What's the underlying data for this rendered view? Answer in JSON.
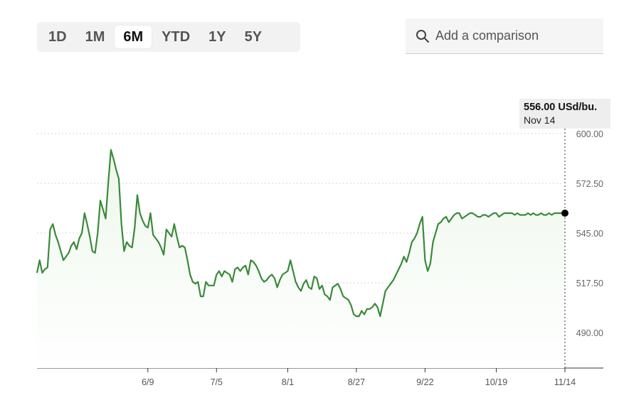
{
  "range_tabs": [
    {
      "label": "1D",
      "active": false
    },
    {
      "label": "1M",
      "active": false
    },
    {
      "label": "6M",
      "active": true
    },
    {
      "label": "YTD",
      "active": false
    },
    {
      "label": "1Y",
      "active": false
    },
    {
      "label": "5Y",
      "active": false
    }
  ],
  "comparison": {
    "placeholder": "Add a comparison",
    "icon": "search-icon"
  },
  "tooltip": {
    "price": "556.00 USd/bu.",
    "date": "Nov 14"
  },
  "colors": {
    "line": "#3a8a3a",
    "area": "#eef7ec",
    "grid": "#d6d6d6",
    "marker": "#000000"
  },
  "chart_data": {
    "type": "area",
    "title": "",
    "xlabel": "",
    "ylabel": "",
    "y_ticks": [
      "600.00",
      "572.50",
      "545.00",
      "517.50",
      "490.00"
    ],
    "ylim": [
      469.5,
      612.5
    ],
    "x_ticks": [
      {
        "label": "6/9",
        "x": 42
      },
      {
        "label": "7/5",
        "x": 68
      },
      {
        "label": "8/1",
        "x": 95
      },
      {
        "label": "8/27",
        "x": 121
      },
      {
        "label": "9/22",
        "x": 147
      },
      {
        "label": "10/19",
        "x": 174
      },
      {
        "label": "11/14",
        "x": 200
      }
    ],
    "grid": "horizontal dotted",
    "series": [
      {
        "x": [
          0,
          1,
          2,
          3,
          4,
          5,
          6,
          7,
          8,
          9,
          10,
          11,
          12,
          13,
          14,
          15,
          16,
          17,
          18,
          19,
          20,
          21,
          22,
          23,
          24,
          25,
          26,
          27,
          28,
          29,
          30,
          31,
          32,
          33,
          34,
          35,
          36,
          37,
          38,
          39,
          40,
          41,
          42,
          43,
          44,
          45,
          46,
          47,
          48,
          49,
          50,
          51,
          52,
          53,
          54,
          55,
          56,
          57,
          58,
          59,
          60,
          61,
          62,
          63,
          64,
          65,
          66,
          67,
          68,
          69,
          70,
          71,
          72,
          73,
          74,
          75,
          76,
          77,
          78,
          79,
          80,
          81,
          82,
          83,
          84,
          85,
          86,
          87,
          88,
          89,
          90,
          91,
          92,
          93,
          94,
          95,
          96,
          97,
          98,
          99,
          100,
          101,
          102,
          103,
          104,
          105,
          106,
          107,
          108,
          109,
          110,
          111,
          112,
          113,
          114,
          115,
          116,
          117,
          118,
          119,
          120,
          121,
          122,
          123,
          124,
          125,
          126,
          127,
          128,
          129,
          130,
          131,
          132,
          133,
          134,
          135,
          136,
          137,
          138,
          139,
          140,
          141,
          142,
          143,
          144,
          145,
          146,
          147,
          148,
          149,
          150,
          151,
          152,
          153,
          154,
          155,
          156,
          157,
          158,
          159,
          160,
          161,
          162,
          163,
          164,
          165,
          166,
          167,
          168,
          169,
          170,
          171,
          172,
          173,
          174,
          175,
          176,
          177,
          178,
          179,
          180,
          181,
          182,
          183,
          184,
          185,
          186,
          187,
          188,
          189,
          190,
          191,
          192,
          193,
          194,
          195,
          196,
          197,
          198,
          199,
          200
        ],
        "values": [
          523,
          530,
          523,
          525,
          526,
          547,
          550,
          544,
          540,
          535,
          530,
          532,
          534,
          538,
          540,
          536,
          542,
          545,
          556,
          550,
          543,
          535,
          534,
          545,
          563,
          558,
          553,
          573,
          591,
          586,
          580,
          575,
          550,
          535,
          540,
          538,
          537,
          548,
          566,
          556,
          552,
          549,
          548,
          556,
          544,
          542,
          540,
          537,
          533,
          547,
          545,
          543,
          550,
          543,
          537,
          538,
          537,
          530,
          522,
          518,
          517,
          518,
          510,
          510,
          518,
          516,
          516,
          516,
          522,
          524,
          521,
          524,
          523,
          522,
          518,
          525,
          526,
          524,
          526,
          527,
          522,
          530,
          529,
          527,
          524,
          520,
          518,
          519,
          521,
          522,
          520,
          515,
          519,
          522,
          523,
          524,
          530,
          524,
          518,
          515,
          513,
          517,
          519,
          515,
          514,
          521,
          520,
          514,
          516,
          511,
          510,
          508,
          515,
          516,
          517,
          514,
          510,
          509,
          508,
          505,
          500,
          499,
          499,
          502,
          500,
          503,
          503,
          504,
          506,
          504,
          499,
          506,
          513,
          515,
          517,
          519,
          522,
          525,
          528,
          532,
          529,
          534,
          540,
          542,
          545,
          550,
          554,
          530,
          524,
          528,
          540,
          545,
          550,
          551,
          553,
          554,
          551,
          553,
          555,
          556,
          556,
          553,
          554,
          555,
          556,
          556,
          555,
          554,
          554,
          555,
          555,
          554,
          555,
          556,
          556,
          554,
          555,
          556,
          556,
          556,
          556,
          555,
          556,
          555,
          555,
          555,
          556,
          555,
          556,
          555,
          555,
          556,
          555,
          555,
          556,
          555,
          556,
          556,
          556,
          556,
          556
        ]
      }
    ],
    "last_value": 556.0
  }
}
